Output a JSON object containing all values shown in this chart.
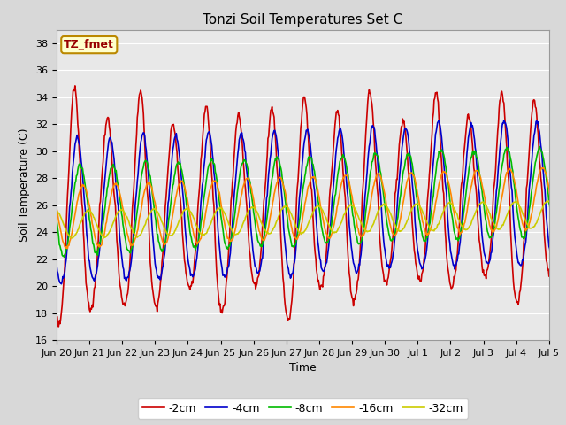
{
  "title": "Tonzi Soil Temperatures Set C",
  "xlabel": "Time",
  "ylabel": "Soil Temperature (C)",
  "ylim": [
    16,
    39
  ],
  "yticks": [
    16,
    18,
    20,
    22,
    24,
    26,
    28,
    30,
    32,
    34,
    36,
    38
  ],
  "colors": {
    "-2cm": "#cc0000",
    "-4cm": "#0000cc",
    "-8cm": "#00bb00",
    "-16cm": "#ff8800",
    "-32cm": "#cccc00"
  },
  "legend_label_box": "TZ_fmet",
  "legend_box_facecolor": "#ffffcc",
  "legend_box_edgecolor": "#bb8800",
  "plot_bg_color": "#e8e8e8",
  "fig_bg_color": "#d8d8d8",
  "grid_color": "#ffffff",
  "title_fontsize": 11,
  "axis_label_fontsize": 9,
  "tick_fontsize": 8,
  "legend_fontsize": 9,
  "linewidth": 1.2,
  "xtick_labels": [
    "Jun 20",
    "Jun 21",
    "Jun 22",
    "Jun 23",
    "Jun 24",
    "Jun 25",
    "Jun 26",
    "Jun 27",
    "Jun 28",
    "Jun 29",
    "Jun 30",
    "Jul 1",
    "Jul 2",
    "Jul 3",
    "Jul 4",
    "Jul 5"
  ],
  "xtick_vals": [
    1,
    2,
    3,
    4,
    5,
    6,
    7,
    8,
    9,
    10,
    11,
    12,
    13,
    14,
    15,
    16
  ]
}
